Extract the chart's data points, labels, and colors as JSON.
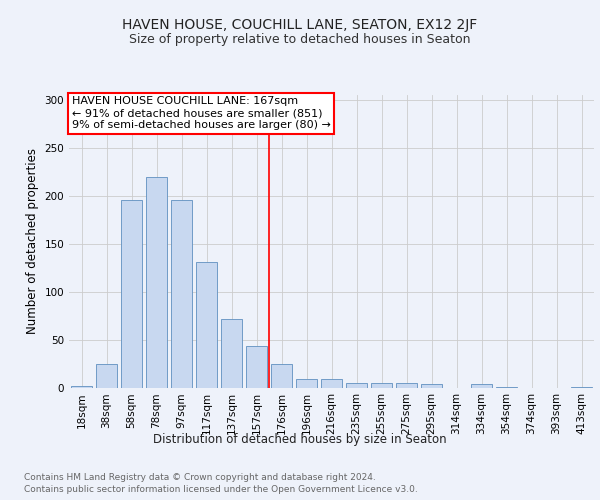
{
  "title1": "HAVEN HOUSE, COUCHILL LANE, SEATON, EX12 2JF",
  "title2": "Size of property relative to detached houses in Seaton",
  "xlabel": "Distribution of detached houses by size in Seaton",
  "ylabel": "Number of detached properties",
  "bar_labels": [
    "18sqm",
    "38sqm",
    "58sqm",
    "78sqm",
    "97sqm",
    "117sqm",
    "137sqm",
    "157sqm",
    "176sqm",
    "196sqm",
    "216sqm",
    "235sqm",
    "255sqm",
    "275sqm",
    "295sqm",
    "314sqm",
    "334sqm",
    "354sqm",
    "374sqm",
    "393sqm",
    "413sqm"
  ],
  "bar_values": [
    2,
    25,
    196,
    220,
    196,
    131,
    71,
    43,
    25,
    9,
    9,
    5,
    5,
    5,
    4,
    0,
    4,
    1,
    0,
    0,
    1
  ],
  "bar_color": "#c8d8f0",
  "bar_edge_color": "#6090c0",
  "ref_line_x": 7.5,
  "ref_line_color": "red",
  "annotation_line1": "HAVEN HOUSE COUCHILL LANE: 167sqm",
  "annotation_line2": "← 91% of detached houses are smaller (851)",
  "annotation_line3": "9% of semi-detached houses are larger (80) →",
  "annotation_box_color": "white",
  "annotation_box_edge_color": "red",
  "ylim": [
    0,
    305
  ],
  "yticks": [
    0,
    50,
    100,
    150,
    200,
    250,
    300
  ],
  "footer1": "Contains HM Land Registry data © Crown copyright and database right 2024.",
  "footer2": "Contains public sector information licensed under the Open Government Licence v3.0.",
  "bg_color": "#eef2fa",
  "plot_bg_color": "#eef2fa",
  "grid_color": "#cccccc",
  "title1_fontsize": 10,
  "title2_fontsize": 9,
  "xlabel_fontsize": 8.5,
  "ylabel_fontsize": 8.5,
  "tick_fontsize": 7.5,
  "footer_fontsize": 6.5,
  "annotation_fontsize": 8
}
